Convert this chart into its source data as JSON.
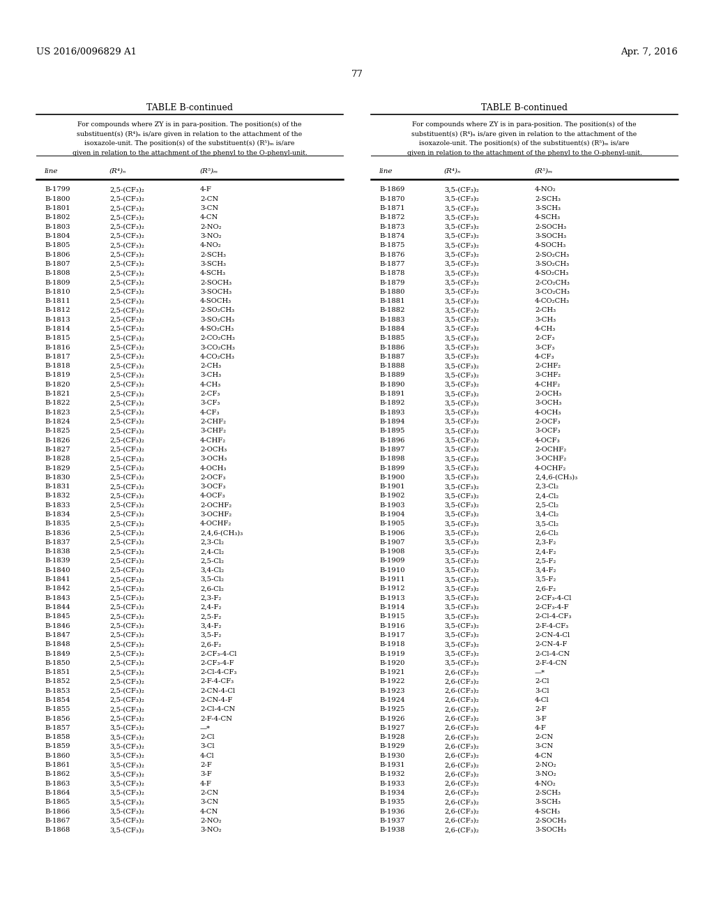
{
  "header_left": "US 2016/0096829 A1",
  "header_right": "Apr. 7, 2016",
  "page_number": "77",
  "table_title": "TABLE B-continued",
  "desc_lines": [
    "For compounds where ZY is in para-position. The position(s) of the",
    "substituent(s) (R⁴)ₙ is/are given in relation to the attachment of the",
    "isoxazole-unit. The position(s) of the substituent(s) (R⁵)ₘ is/are",
    "given in relation to the attachment of the phenyl to the O-phenyl-unit."
  ],
  "col_headers": [
    "line",
    "(R⁴)ₙ",
    "(R⁵)ₘ"
  ],
  "left_table": [
    [
      "B-1799",
      "2,5-(CF₃)₂",
      "4-F"
    ],
    [
      "B-1800",
      "2,5-(CF₃)₂",
      "2-CN"
    ],
    [
      "B-1801",
      "2,5-(CF₃)₂",
      "3-CN"
    ],
    [
      "B-1802",
      "2,5-(CF₃)₂",
      "4-CN"
    ],
    [
      "B-1803",
      "2,5-(CF₃)₂",
      "2-NO₂"
    ],
    [
      "B-1804",
      "2,5-(CF₃)₂",
      "3-NO₂"
    ],
    [
      "B-1805",
      "2,5-(CF₃)₂",
      "4-NO₂"
    ],
    [
      "B-1806",
      "2,5-(CF₃)₂",
      "2-SCH₃"
    ],
    [
      "B-1807",
      "2,5-(CF₃)₂",
      "3-SCH₃"
    ],
    [
      "B-1808",
      "2,5-(CF₃)₂",
      "4-SCH₃"
    ],
    [
      "B-1809",
      "2,5-(CF₃)₂",
      "2-SOCH₃"
    ],
    [
      "B-1810",
      "2,5-(CF₃)₂",
      "3-SOCH₃"
    ],
    [
      "B-1811",
      "2,5-(CF₃)₂",
      "4-SOCH₃"
    ],
    [
      "B-1812",
      "2,5-(CF₃)₂",
      "2-SO₂CH₃"
    ],
    [
      "B-1813",
      "2,5-(CF₃)₂",
      "3-SO₂CH₃"
    ],
    [
      "B-1814",
      "2,5-(CF₃)₂",
      "4-SO₂CH₃"
    ],
    [
      "B-1815",
      "2,5-(CF₃)₂",
      "2-CO₂CH₃"
    ],
    [
      "B-1816",
      "2,5-(CF₃)₂",
      "3-CO₂CH₃"
    ],
    [
      "B-1817",
      "2,5-(CF₃)₂",
      "4-CO₂CH₃"
    ],
    [
      "B-1818",
      "2,5-(CF₃)₂",
      "2-CH₃"
    ],
    [
      "B-1819",
      "2,5-(CF₃)₂",
      "3-CH₃"
    ],
    [
      "B-1820",
      "2,5-(CF₃)₂",
      "4-CH₃"
    ],
    [
      "B-1821",
      "2,5-(CF₃)₂",
      "2-CF₃"
    ],
    [
      "B-1822",
      "2,5-(CF₃)₂",
      "3-CF₃"
    ],
    [
      "B-1823",
      "2,5-(CF₃)₂",
      "4-CF₃"
    ],
    [
      "B-1824",
      "2,5-(CF₃)₂",
      "2-CHF₂"
    ],
    [
      "B-1825",
      "2,5-(CF₃)₂",
      "3-CHF₂"
    ],
    [
      "B-1826",
      "2,5-(CF₃)₂",
      "4-CHF₂"
    ],
    [
      "B-1827",
      "2,5-(CF₃)₂",
      "2-OCH₃"
    ],
    [
      "B-1828",
      "2,5-(CF₃)₂",
      "3-OCH₃"
    ],
    [
      "B-1829",
      "2,5-(CF₃)₂",
      "4-OCH₃"
    ],
    [
      "B-1830",
      "2,5-(CF₃)₂",
      "2-OCF₃"
    ],
    [
      "B-1831",
      "2,5-(CF₃)₂",
      "3-OCF₃"
    ],
    [
      "B-1832",
      "2,5-(CF₃)₂",
      "4-OCF₃"
    ],
    [
      "B-1833",
      "2,5-(CF₃)₂",
      "2-OCHF₂"
    ],
    [
      "B-1834",
      "2,5-(CF₃)₂",
      "3-OCHF₂"
    ],
    [
      "B-1835",
      "2,5-(CF₃)₂",
      "4-OCHF₂"
    ],
    [
      "B-1836",
      "2,5-(CF₃)₂",
      "2,4,6-(CH₃)₃"
    ],
    [
      "B-1837",
      "2,5-(CF₃)₂",
      "2,3-Cl₂"
    ],
    [
      "B-1838",
      "2,5-(CF₃)₂",
      "2,4-Cl₂"
    ],
    [
      "B-1839",
      "2,5-(CF₃)₂",
      "2,5-Cl₂"
    ],
    [
      "B-1840",
      "2,5-(CF₃)₂",
      "3,4-Cl₂"
    ],
    [
      "B-1841",
      "2,5-(CF₃)₂",
      "3,5-Cl₂"
    ],
    [
      "B-1842",
      "2,5-(CF₃)₂",
      "2,6-Cl₂"
    ],
    [
      "B-1843",
      "2,5-(CF₃)₂",
      "2,3-F₂"
    ],
    [
      "B-1844",
      "2,5-(CF₃)₂",
      "2,4-F₂"
    ],
    [
      "B-1845",
      "2,5-(CF₃)₂",
      "2,5-F₂"
    ],
    [
      "B-1846",
      "2,5-(CF₃)₂",
      "3,4-F₂"
    ],
    [
      "B-1847",
      "2,5-(CF₃)₂",
      "3,5-F₂"
    ],
    [
      "B-1848",
      "2,5-(CF₃)₂",
      "2,6-F₂"
    ],
    [
      "B-1849",
      "2,5-(CF₃)₂",
      "2-CF₃-4-Cl"
    ],
    [
      "B-1850",
      "2,5-(CF₃)₂",
      "2-CF₃-4-F"
    ],
    [
      "B-1851",
      "2,5-(CF₃)₂",
      "2-Cl-4-CF₃"
    ],
    [
      "B-1852",
      "2,5-(CF₃)₂",
      "2-F-4-CF₃"
    ],
    [
      "B-1853",
      "2,5-(CF₃)₂",
      "2-CN-4-Cl"
    ],
    [
      "B-1854",
      "2,5-(CF₃)₂",
      "2-CN-4-F"
    ],
    [
      "B-1855",
      "2,5-(CF₃)₂",
      "2-Cl-4-CN"
    ],
    [
      "B-1856",
      "2,5-(CF₃)₂",
      "2-F-4-CN"
    ],
    [
      "B-1857",
      "3,5-(CF₃)₂",
      "—*"
    ],
    [
      "B-1858",
      "3,5-(CF₃)₂",
      "2-Cl"
    ],
    [
      "B-1859",
      "3,5-(CF₃)₂",
      "3-Cl"
    ],
    [
      "B-1860",
      "3,5-(CF₃)₂",
      "4-Cl"
    ],
    [
      "B-1861",
      "3,5-(CF₃)₂",
      "2-F"
    ],
    [
      "B-1862",
      "3,5-(CF₃)₂",
      "3-F"
    ],
    [
      "B-1863",
      "3,5-(CF₃)₂",
      "4-F"
    ],
    [
      "B-1864",
      "3,5-(CF₃)₂",
      "2-CN"
    ],
    [
      "B-1865",
      "3,5-(CF₃)₂",
      "3-CN"
    ],
    [
      "B-1866",
      "3,5-(CF₃)₂",
      "4-CN"
    ],
    [
      "B-1867",
      "3,5-(CF₃)₂",
      "2-NO₂"
    ],
    [
      "B-1868",
      "3,5-(CF₃)₂",
      "3-NO₂"
    ]
  ],
  "right_table": [
    [
      "B-1869",
      "3,5-(CF₃)₂",
      "4-NO₂"
    ],
    [
      "B-1870",
      "3,5-(CF₃)₂",
      "2-SCH₃"
    ],
    [
      "B-1871",
      "3,5-(CF₃)₂",
      "3-SCH₃"
    ],
    [
      "B-1872",
      "3,5-(CF₃)₂",
      "4-SCH₃"
    ],
    [
      "B-1873",
      "3,5-(CF₃)₂",
      "2-SOCH₃"
    ],
    [
      "B-1874",
      "3,5-(CF₃)₂",
      "3-SOCH₃"
    ],
    [
      "B-1875",
      "3,5-(CF₃)₂",
      "4-SOCH₃"
    ],
    [
      "B-1876",
      "3,5-(CF₃)₂",
      "2-SO₂CH₃"
    ],
    [
      "B-1877",
      "3,5-(CF₃)₂",
      "3-SO₂CH₃"
    ],
    [
      "B-1878",
      "3,5-(CF₃)₂",
      "4-SO₂CH₃"
    ],
    [
      "B-1879",
      "3,5-(CF₃)₂",
      "2-CO₂CH₃"
    ],
    [
      "B-1880",
      "3,5-(CF₃)₂",
      "3-CO₂CH₃"
    ],
    [
      "B-1881",
      "3,5-(CF₃)₂",
      "4-CO₂CH₃"
    ],
    [
      "B-1882",
      "3,5-(CF₃)₂",
      "2-CH₃"
    ],
    [
      "B-1883",
      "3,5-(CF₃)₂",
      "3-CH₃"
    ],
    [
      "B-1884",
      "3,5-(CF₃)₂",
      "4-CH₃"
    ],
    [
      "B-1885",
      "3,5-(CF₃)₂",
      "2-CF₃"
    ],
    [
      "B-1886",
      "3,5-(CF₃)₂",
      "3-CF₃"
    ],
    [
      "B-1887",
      "3,5-(CF₃)₂",
      "4-CF₃"
    ],
    [
      "B-1888",
      "3,5-(CF₃)₂",
      "2-CHF₂"
    ],
    [
      "B-1889",
      "3,5-(CF₃)₂",
      "3-CHF₂"
    ],
    [
      "B-1890",
      "3,5-(CF₃)₂",
      "4-CHF₂"
    ],
    [
      "B-1891",
      "3,5-(CF₃)₂",
      "2-OCH₃"
    ],
    [
      "B-1892",
      "3,5-(CF₃)₂",
      "3-OCH₃"
    ],
    [
      "B-1893",
      "3,5-(CF₃)₂",
      "4-OCH₃"
    ],
    [
      "B-1894",
      "3,5-(CF₃)₂",
      "2-OCF₃"
    ],
    [
      "B-1895",
      "3,5-(CF₃)₂",
      "3-OCF₃"
    ],
    [
      "B-1896",
      "3,5-(CF₃)₂",
      "4-OCF₃"
    ],
    [
      "B-1897",
      "3,5-(CF₃)₂",
      "2-OCHF₂"
    ],
    [
      "B-1898",
      "3,5-(CF₃)₂",
      "3-OCHF₂"
    ],
    [
      "B-1899",
      "3,5-(CF₃)₂",
      "4-OCHF₂"
    ],
    [
      "B-1900",
      "3,5-(CF₃)₂",
      "2,4,6-(CH₃)₃"
    ],
    [
      "B-1901",
      "3,5-(CF₃)₂",
      "2,3-Cl₂"
    ],
    [
      "B-1902",
      "3,5-(CF₃)₂",
      "2,4-Cl₂"
    ],
    [
      "B-1903",
      "3,5-(CF₃)₂",
      "2,5-Cl₂"
    ],
    [
      "B-1904",
      "3,5-(CF₃)₂",
      "3,4-Cl₂"
    ],
    [
      "B-1905",
      "3,5-(CF₃)₂",
      "3,5-Cl₂"
    ],
    [
      "B-1906",
      "3,5-(CF₃)₂",
      "2,6-Cl₂"
    ],
    [
      "B-1907",
      "3,5-(CF₃)₂",
      "2,3-F₂"
    ],
    [
      "B-1908",
      "3,5-(CF₃)₂",
      "2,4-F₂"
    ],
    [
      "B-1909",
      "3,5-(CF₃)₂",
      "2,5-F₂"
    ],
    [
      "B-1910",
      "3,5-(CF₃)₂",
      "3,4-F₂"
    ],
    [
      "B-1911",
      "3,5-(CF₃)₂",
      "3,5-F₂"
    ],
    [
      "B-1912",
      "3,5-(CF₃)₂",
      "2,6-F₂"
    ],
    [
      "B-1913",
      "3,5-(CF₃)₂",
      "2-CF₃-4-Cl"
    ],
    [
      "B-1914",
      "3,5-(CF₃)₂",
      "2-CF₃-4-F"
    ],
    [
      "B-1915",
      "3,5-(CF₃)₂",
      "2-Cl-4-CF₃"
    ],
    [
      "B-1916",
      "3,5-(CF₃)₂",
      "2-F-4-CF₃"
    ],
    [
      "B-1917",
      "3,5-(CF₃)₂",
      "2-CN-4-Cl"
    ],
    [
      "B-1918",
      "3,5-(CF₃)₂",
      "2-CN-4-F"
    ],
    [
      "B-1919",
      "3,5-(CF₃)₂",
      "2-Cl-4-CN"
    ],
    [
      "B-1920",
      "3,5-(CF₃)₂",
      "2-F-4-CN"
    ],
    [
      "B-1921",
      "2,6-(CF₃)₂",
      "—*"
    ],
    [
      "B-1922",
      "2,6-(CF₃)₂",
      "2-Cl"
    ],
    [
      "B-1923",
      "2,6-(CF₃)₂",
      "3-Cl"
    ],
    [
      "B-1924",
      "2,6-(CF₃)₂",
      "4-Cl"
    ],
    [
      "B-1925",
      "2,6-(CF₃)₂",
      "2-F"
    ],
    [
      "B-1926",
      "2,6-(CF₃)₂",
      "3-F"
    ],
    [
      "B-1927",
      "2,6-(CF₃)₂",
      "4-F"
    ],
    [
      "B-1928",
      "2,6-(CF₃)₂",
      "2-CN"
    ],
    [
      "B-1929",
      "2,6-(CF₃)₂",
      "3-CN"
    ],
    [
      "B-1930",
      "2,6-(CF₃)₂",
      "4-CN"
    ],
    [
      "B-1931",
      "2,6-(CF₃)₂",
      "2-NO₂"
    ],
    [
      "B-1932",
      "2,6-(CF₃)₂",
      "3-NO₂"
    ],
    [
      "B-1933",
      "2,6-(CF₃)₂",
      "4-NO₂"
    ],
    [
      "B-1934",
      "2,6-(CF₃)₂",
      "2-SCH₃"
    ],
    [
      "B-1935",
      "2,6-(CF₃)₂",
      "3-SCH₃"
    ],
    [
      "B-1936",
      "2,6-(CF₃)₂",
      "4-SCH₃"
    ],
    [
      "B-1937",
      "2,6-(CF₃)₂",
      "2-SOCH₃"
    ],
    [
      "B-1938",
      "2,6-(CF₃)₂",
      "3-SOCH₃"
    ]
  ],
  "bg_color": "#ffffff",
  "text_color": "#000000"
}
